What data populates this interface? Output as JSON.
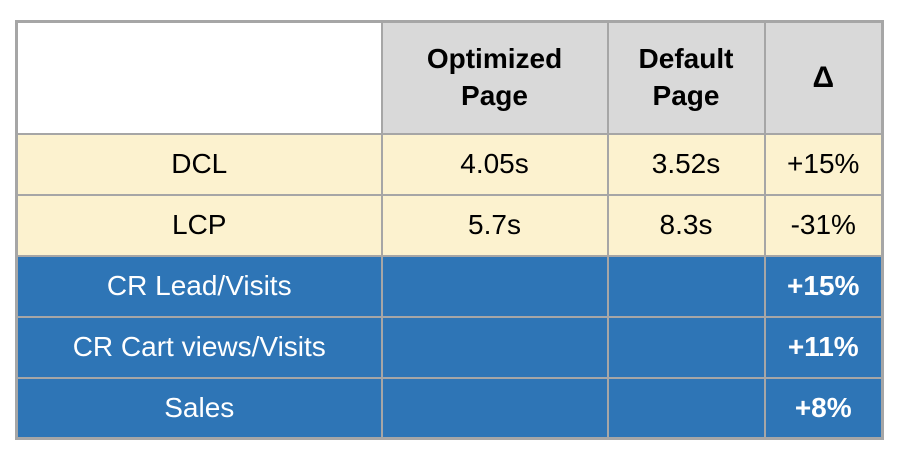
{
  "table": {
    "header": {
      "corner": "",
      "optimized": "Optimized Page",
      "default": "Default Page",
      "delta": "Δ"
    },
    "rows": [
      {
        "label": "DCL",
        "optimized": "4.05s",
        "default": "3.52s",
        "delta": "+15%"
      },
      {
        "label": "LCP",
        "optimized": "5.7s",
        "default": "8.3s",
        "delta": "-31%"
      },
      {
        "label": "CR Lead/Visits",
        "optimized": "",
        "default": "",
        "delta": "+15%"
      },
      {
        "label": "CR Cart views/Visits",
        "optimized": "",
        "default": "",
        "delta": "+11%"
      },
      {
        "label": "Sales",
        "optimized": "",
        "default": "",
        "delta": "+8%"
      }
    ],
    "colors": {
      "header_bg": "#D9D9D9",
      "metric_row_bg": "#FCF2CF",
      "conversion_row_bg": "#2E75B6",
      "border": "#A6A6A6",
      "text_dark": "#000000",
      "text_light": "#FFFFFF"
    }
  },
  "chart_data": {
    "type": "table",
    "columns": [
      "",
      "Optimized Page",
      "Default Page",
      "Δ"
    ],
    "rows": [
      [
        "DCL",
        "4.05s",
        "3.52s",
        "+15%"
      ],
      [
        "LCP",
        "5.7s",
        "8.3s",
        "-31%"
      ],
      [
        "CR Lead/Visits",
        "",
        "",
        "+15%"
      ],
      [
        "CR Cart views/Visits",
        "",
        "",
        "+11%"
      ],
      [
        "Sales",
        "",
        "",
        "+8%"
      ]
    ]
  }
}
